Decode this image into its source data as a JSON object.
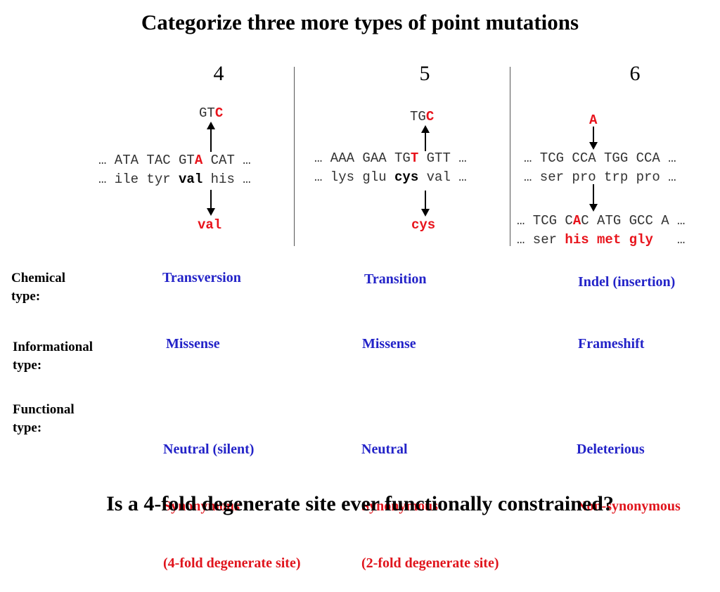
{
  "title": "Categorize three more types of point mutations",
  "columns": [
    {
      "number": "4",
      "mutant_codon": {
        "prefix": "GT",
        "mutated": "C"
      },
      "dna": {
        "before": "… ATA TAC GT",
        "mutated": "A",
        "after": " CAT …"
      },
      "protein": {
        "before": "… ile tyr ",
        "highlight": "val",
        "after": " his …"
      },
      "result": "val",
      "chemical_type": "Transversion",
      "informational_type": "Missense",
      "functional": {
        "line1": "Neutral (silent)",
        "line2": "Synonymous",
        "line3": "(4-fold degenerate site)"
      }
    },
    {
      "number": "5",
      "mutant_codon": {
        "prefix": "TG",
        "mutated": "C"
      },
      "dna": {
        "before": "… AAA GAA TG",
        "mutated": "T",
        "after": " GTT …"
      },
      "protein": {
        "before": "… lys glu ",
        "highlight": "cys",
        "after": " val …"
      },
      "result": "cys",
      "chemical_type": "Transition",
      "informational_type": "Missense",
      "functional": {
        "line1": "Neutral",
        "line2": "Synonymous",
        "line3": "(2-fold degenerate site)"
      }
    },
    {
      "number": "6",
      "inserted": "A",
      "dna": "… TCG CCA TGG CCA …",
      "protein": "… ser pro trp pro …",
      "result_dna": {
        "before": "… TCG C",
        "mutated": "A",
        "after": "C ATG GCC A …"
      },
      "result_protein": {
        "before": "… ser ",
        "highlight": "his met gly",
        "after": "   …"
      },
      "chemical_type": "Indel (insertion)",
      "informational_type": "Frameshift",
      "functional": {
        "line1": "Deleterious",
        "line2": "Non-synonymous"
      }
    }
  ],
  "row_labels": {
    "chemical": {
      "line1": "Chemical",
      "line2": "type:"
    },
    "informational": {
      "line1": "Informational",
      "line2": "type:"
    },
    "functional": {
      "line1": "Functional",
      "line2": "type:"
    }
  },
  "question": "Is a 4-fold degenerate site ever functionally constrained?",
  "colors": {
    "mutation_red": "#e8141c",
    "category_blue": "#2323c8",
    "functional_red": "#e0141c"
  }
}
